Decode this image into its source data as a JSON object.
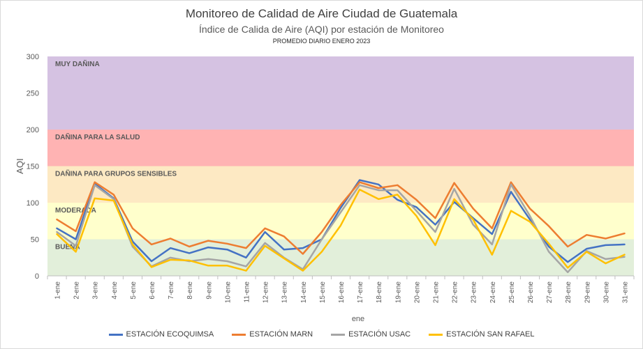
{
  "chart_data": {
    "type": "line",
    "title": "Monitoreo de Calidad de Aire Ciudad de Guatemala",
    "subtitle": "Índice de Calida de Aire (AQI) por estación de Monitoreo",
    "subtitle2": "PROMEDIO DIARIO ENERO 2023",
    "xlabel": "ene",
    "ylabel": "AQI",
    "ylim": [
      0,
      300
    ],
    "yticks": [
      "0",
      "50",
      "100",
      "150",
      "200",
      "250",
      "300"
    ],
    "grid": false,
    "legend_position": "bottom",
    "categories": [
      "1-ene",
      "2-ene",
      "3-ene",
      "4-ene",
      "5-ene",
      "6-ene",
      "7-ene",
      "8-ene",
      "9-ene",
      "10-ene",
      "11-ene",
      "12-ene",
      "13-ene",
      "14-ene",
      "15-ene",
      "16-ene",
      "17-ene",
      "18-ene",
      "19-ene",
      "20-ene",
      "21-ene",
      "22-ene",
      "23-ene",
      "24-ene",
      "25-ene",
      "26-ene",
      "27-ene",
      "28-ene",
      "29-ene",
      "30-ene",
      "31-ene"
    ],
    "bands": [
      {
        "label": "BUENA",
        "from": 0,
        "to": 50,
        "color": "#e2efda"
      },
      {
        "label": "MODERADA",
        "from": 50,
        "to": 100,
        "color": "#ffffcc"
      },
      {
        "label": "DAÑINA PARA  GRUPOS SENSIBLES",
        "from": 100,
        "to": 150,
        "color": "#fde9c3"
      },
      {
        "label": "DAÑINA PARA LA SALUD",
        "from": 150,
        "to": 200,
        "color": "#ffb3b3"
      },
      {
        "label": "MUY DAÑINA",
        "from": 200,
        "to": 300,
        "color": "#d5c2e2"
      }
    ],
    "series": [
      {
        "name": "ESTACIÓN ECOQUIMSA",
        "color": "#4472c4",
        "values": [
          65,
          50,
          126,
          106,
          47,
          20,
          38,
          31,
          39,
          36,
          25,
          60,
          36,
          38,
          50,
          93,
          131,
          125,
          104,
          94,
          70,
          101,
          79,
          57,
          115,
          77,
          40,
          19,
          37,
          42,
          43
        ]
      },
      {
        "name": "ESTACIÓN MARN",
        "color": "#ed7d31",
        "values": [
          77,
          61,
          128,
          111,
          65,
          43,
          51,
          40,
          48,
          44,
          38,
          65,
          54,
          30,
          60,
          97,
          128,
          120,
          124,
          104,
          79,
          127,
          92,
          65,
          128,
          92,
          68,
          40,
          56,
          51,
          58
        ]
      },
      {
        "name": "ESTACIÓN USAC",
        "color": "#a5a5a5",
        "values": [
          60,
          41,
          124,
          105,
          40,
          13,
          25,
          20,
          23,
          20,
          13,
          45,
          25,
          9,
          50,
          87,
          124,
          117,
          117,
          89,
          60,
          119,
          70,
          43,
          125,
          82,
          33,
          5,
          34,
          23,
          26
        ]
      },
      {
        "name": "ESTACIÓN SAN RAFAEL",
        "color": "#ffc000",
        "values": [
          57,
          33,
          106,
          103,
          43,
          12,
          22,
          21,
          14,
          14,
          7,
          41,
          24,
          7,
          33,
          69,
          118,
          105,
          111,
          82,
          42,
          105,
          77,
          29,
          89,
          74,
          44,
          11,
          33,
          17,
          29
        ]
      }
    ]
  }
}
